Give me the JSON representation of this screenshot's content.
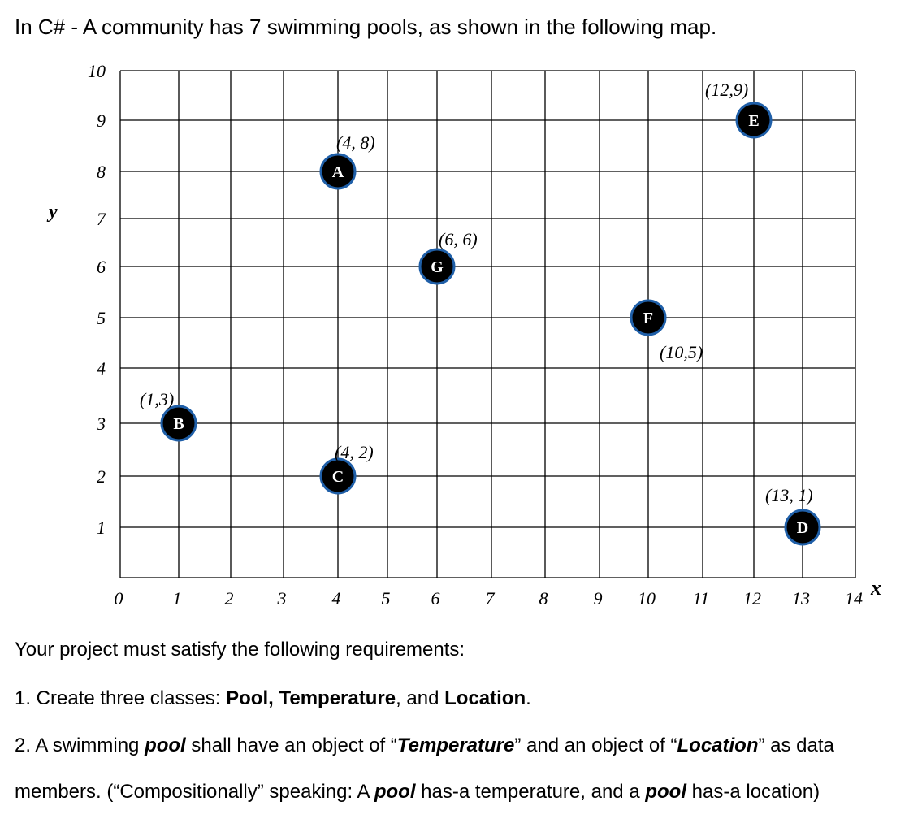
{
  "intro": "In C# - A community has 7 swimming pools, as shown in the following map.",
  "chart_data": {
    "type": "scatter",
    "xlabel": "x",
    "ylabel": "y",
    "xlim": [
      0,
      14
    ],
    "ylim": [
      0,
      10
    ],
    "x_ticks": [
      "0",
      "1",
      "2",
      "3",
      "4",
      "5",
      "6",
      "7",
      "8",
      "9",
      "10",
      "11",
      "12",
      "13",
      "14"
    ],
    "y_ticks": [
      "1",
      "2",
      "3",
      "4",
      "5",
      "6",
      "7",
      "8",
      "9",
      "10"
    ],
    "grid": true,
    "points": [
      {
        "name": "A",
        "x": 4,
        "y": 8,
        "label": "(4, 8)"
      },
      {
        "name": "B",
        "x": 1,
        "y": 3,
        "label": "(1,3)"
      },
      {
        "name": "C",
        "x": 4,
        "y": 2,
        "label": "(4, 2)"
      },
      {
        "name": "D",
        "x": 13,
        "y": 1,
        "label": "(13, 1)"
      },
      {
        "name": "E",
        "x": 12,
        "y": 9,
        "label": "(12,9)"
      },
      {
        "name": "F",
        "x": 10,
        "y": 5,
        "label": "(10,5)"
      },
      {
        "name": "G",
        "x": 6,
        "y": 6,
        "label": "(6, 6)"
      }
    ],
    "marker_fill": "#000000",
    "marker_ring": "#1f5fa8"
  },
  "requirements": {
    "heading": "Your project must satisfy the following requirements:",
    "r1": {
      "prefix": "1. Create three classes: ",
      "c1": "Pool,",
      "sp": " ",
      "c2": "Temperature",
      "mid": ", and ",
      "c3": "Location",
      "end": "."
    },
    "r2": {
      "t1": "2. A swimming ",
      "k1": "pool",
      "t2": " shall have an object of “",
      "k2": "Temperature",
      "t3": "” and an object of “",
      "k3": "Location",
      "t4": "” as data"
    },
    "r3": {
      "t1": "members. (“Compositionally” speaking: A ",
      "k1": "pool",
      "t2": " has-a temperature, and a ",
      "k2": "pool",
      "t3": " has-a location)"
    }
  }
}
